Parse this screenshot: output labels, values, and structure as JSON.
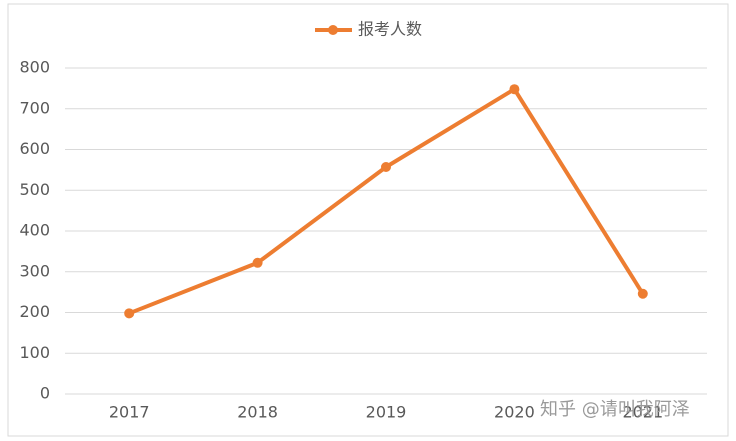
{
  "chart_data": {
    "type": "line",
    "categories": [
      "2017",
      "2018",
      "2019",
      "2020",
      "2021"
    ],
    "series": [
      {
        "name": "报考人数",
        "color": "#ed7d31",
        "values": [
          198,
          322,
          557,
          748,
          246
        ]
      }
    ],
    "ylim": [
      0,
      800
    ],
    "yticks": [
      0,
      100,
      200,
      300,
      400,
      500,
      600,
      700,
      800
    ],
    "grid": true,
    "legend": "top",
    "watermark": "知乎 @请叫我阿泽"
  }
}
